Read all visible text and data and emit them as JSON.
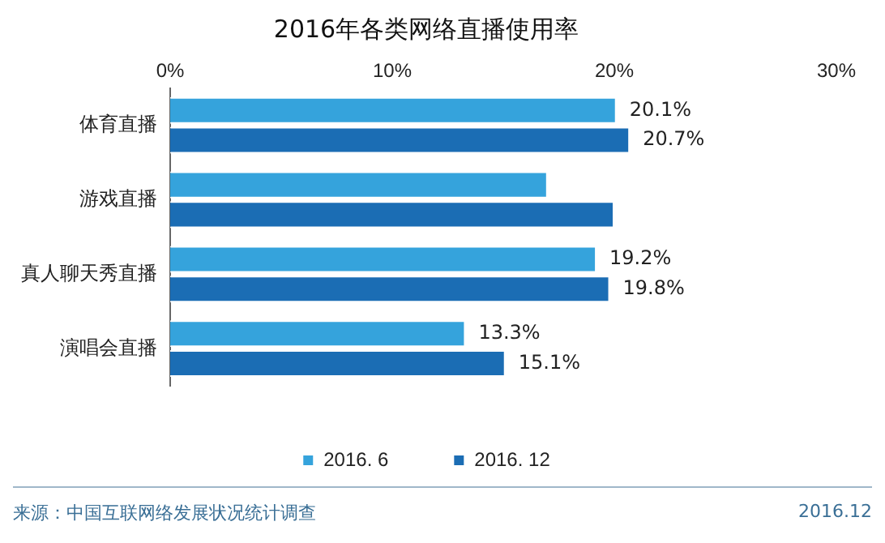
{
  "chart_data": {
    "type": "bar",
    "orientation": "horizontal",
    "title": "2016年各类网络直播使用率",
    "categories": [
      "体育直播",
      "游戏直播",
      "真人聊天秀直播",
      "演唱会直播"
    ],
    "series": [
      {
        "name": "2016. 6",
        "color": "#35a3dc",
        "values": [
          20.1,
          17.0,
          19.2,
          13.3
        ],
        "value_labels": [
          "20.1%",
          null,
          "19.2%",
          "13.3%"
        ]
      },
      {
        "name": "2016. 12",
        "color": "#1b6db4",
        "values": [
          20.7,
          20.0,
          19.8,
          15.1
        ],
        "value_labels": [
          "20.7%",
          null,
          "19.8%",
          "15.1%"
        ]
      }
    ],
    "xlim": [
      0,
      30
    ],
    "xticks": [
      {
        "value": 0,
        "label": "0%"
      },
      {
        "value": 10,
        "label": "10%"
      },
      {
        "value": 20,
        "label": "20%"
      },
      {
        "value": 30,
        "label": "30%"
      }
    ],
    "grid": false,
    "legend": "bottom",
    "annotations": [
      "来源：中国互联网络发展状况统计调查",
      "2016.12"
    ]
  }
}
